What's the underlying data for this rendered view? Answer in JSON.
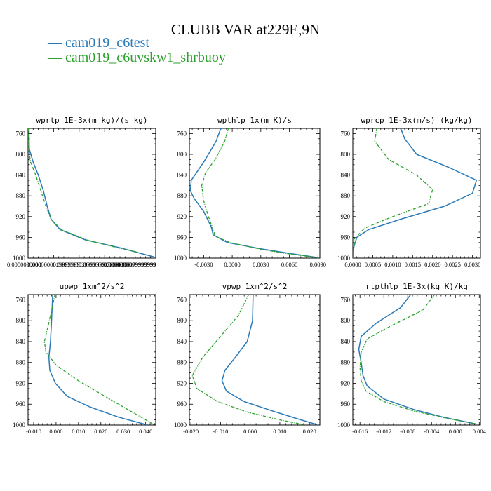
{
  "title": "CLUBB VAR at229E,9N",
  "colors": {
    "series0": "#2a7ab8",
    "series1": "#2ca02c",
    "axis": "#000000"
  },
  "legend": [
    {
      "label": "cam019_c6test",
      "color": "#2a7ab8",
      "symbol": "—"
    },
    {
      "label": "cam019_c6uvskw1_shrbuoy",
      "color": "#2ca02c",
      "symbol": "—"
    }
  ],
  "chart_data": [
    {
      "type": "line",
      "title": "wprtp  1E-3x(m kg)/(s kg)",
      "xlim": [
        0,
        9.9999999e-09
      ],
      "ylim": [
        1000,
        750
      ],
      "yticks": [
        760,
        800,
        840,
        880,
        920,
        960,
        1000
      ],
      "xticks": [
        0,
        1.9999999e-09,
        3.9999999e-09,
        5.9999999e-09,
        7.9999999e-09,
        9.9999999e-09
      ],
      "xtick_labels": [
        "0.0000000000",
        "0.0000000019999999",
        "0.0000000039999999",
        "0.0000000059999999",
        "0.0000000079999999",
        "0.0000000099999999"
      ],
      "xtick_render": "overlap",
      "series": [
        {
          "points": [
            [
              8e-11,
              750
            ],
            [
              8e-11,
              770
            ],
            [
              1e-10,
              790
            ],
            [
              4e-10,
              815
            ],
            [
              8e-10,
              840
            ],
            [
              1.2e-09,
              870
            ],
            [
              1.5e-09,
              900
            ],
            [
              1.8e-09,
              925
            ],
            [
              2.5e-09,
              945
            ],
            [
              4.5e-09,
              965
            ],
            [
              7.2e-09,
              980
            ],
            [
              9e-09,
              992
            ],
            [
              9.9e-09,
              998
            ]
          ]
        },
        {
          "points": [
            [
              3e-11,
              750
            ],
            [
              3e-11,
              770
            ],
            [
              5e-11,
              790
            ],
            [
              2e-10,
              815
            ],
            [
              6e-10,
              840
            ],
            [
              1e-09,
              870
            ],
            [
              1.4e-09,
              900
            ],
            [
              1.8e-09,
              925
            ],
            [
              2.6e-09,
              945
            ],
            [
              4.6e-09,
              965
            ],
            [
              7e-09,
              980
            ],
            [
              8.2e-09,
              986
            ],
            [
              8.7e-09,
              990
            ]
          ]
        }
      ]
    },
    {
      "type": "line",
      "title": "wpthlp  1x(m K)/s",
      "xlim": [
        -0.0045,
        0.0092
      ],
      "ylim": [
        1000,
        750
      ],
      "yticks": [
        760,
        800,
        840,
        880,
        920,
        960,
        1000
      ],
      "xticks": [
        -0.003,
        0.0,
        0.003,
        0.006,
        0.009
      ],
      "xtick_labels": [
        "-0.0030",
        "0.0000",
        "0.0030",
        "0.0060",
        "0.0090"
      ],
      "series": [
        {
          "points": [
            [
              -0.0012,
              750
            ],
            [
              -0.0017,
              775
            ],
            [
              -0.003,
              815
            ],
            [
              -0.0043,
              850
            ],
            [
              -0.0044,
              870
            ],
            [
              -0.004,
              885
            ],
            [
              -0.003,
              910
            ],
            [
              -0.0022,
              940
            ],
            [
              -0.002,
              955
            ],
            [
              -0.0005,
              970
            ],
            [
              0.003,
              982
            ],
            [
              0.006,
              991
            ],
            [
              0.009,
              999
            ]
          ]
        },
        {
          "points": [
            [
              -0.0004,
              750
            ],
            [
              -0.0008,
              775
            ],
            [
              -0.0018,
              810
            ],
            [
              -0.0028,
              835
            ],
            [
              -0.0032,
              860
            ],
            [
              -0.003,
              890
            ],
            [
              -0.0025,
              920
            ],
            [
              -0.002,
              945
            ],
            [
              -0.0018,
              958
            ],
            [
              -0.0002,
              970
            ],
            [
              0.003,
              983
            ],
            [
              0.006,
              992
            ],
            [
              0.009,
              999
            ]
          ]
        }
      ]
    },
    {
      "type": "line",
      "title": "wprcp  1E-3x(m/s) (kg/kg)",
      "xlim": [
        0,
        0.0032
      ],
      "ylim": [
        1000,
        750
      ],
      "yticks": [
        760,
        800,
        840,
        880,
        920,
        960,
        1000
      ],
      "xticks": [
        0.0,
        0.0005,
        0.001,
        0.0015,
        0.002,
        0.0025,
        0.003
      ],
      "xtick_labels": [
        "0.0000",
        "0.0005",
        "0.0010",
        "0.0015",
        "0.0020",
        "0.0025",
        "0.0030"
      ],
      "series": [
        {
          "points": [
            [
              0.0012,
              750
            ],
            [
              0.0013,
              770
            ],
            [
              0.0016,
              800
            ],
            [
              0.0024,
              825
            ],
            [
              0.0031,
              850
            ],
            [
              0.003,
              875
            ],
            [
              0.0023,
              900
            ],
            [
              0.0012,
              925
            ],
            [
              0.0004,
              945
            ],
            [
              0.0001,
              960
            ],
            [
              2e-05,
              980
            ],
            [
              0.0,
              1000
            ]
          ]
        },
        {
          "points": [
            [
              0.0006,
              750
            ],
            [
              0.00055,
              775
            ],
            [
              0.0009,
              810
            ],
            [
              0.0016,
              840
            ],
            [
              0.002,
              868
            ],
            [
              0.0019,
              895
            ],
            [
              0.001,
              920
            ],
            [
              0.0003,
              942
            ],
            [
              5e-05,
              962
            ],
            [
              0.0,
              1000
            ]
          ]
        }
      ]
    },
    {
      "type": "line",
      "title": "upwp  1xm^2/s^2",
      "xlim": [
        -0.0125,
        0.0445
      ],
      "ylim": [
        1000,
        750
      ],
      "yticks": [
        760,
        800,
        840,
        880,
        920,
        960,
        1000
      ],
      "xticks": [
        -0.01,
        0.0,
        0.01,
        0.02,
        0.03,
        0.04
      ],
      "xtick_labels": [
        "-0.010",
        "0.000",
        "0.010",
        "0.020",
        "0.030",
        "0.040"
      ],
      "series": [
        {
          "points": [
            [
              -0.0015,
              750
            ],
            [
              -0.002,
              800
            ],
            [
              -0.0025,
              840
            ],
            [
              -0.0032,
              870
            ],
            [
              -0.0028,
              895
            ],
            [
              -0.0003,
              920
            ],
            [
              0.005,
              945
            ],
            [
              0.015,
              965
            ],
            [
              0.028,
              985
            ],
            [
              0.041,
              1000
            ]
          ]
        },
        {
          "points": [
            [
              -0.0005,
              750
            ],
            [
              -0.003,
              800
            ],
            [
              -0.0052,
              840
            ],
            [
              -0.0045,
              860
            ],
            [
              0.0,
              885
            ],
            [
              0.01,
              915
            ],
            [
              0.023,
              948
            ],
            [
              0.034,
              975
            ],
            [
              0.044,
              1000
            ]
          ]
        }
      ]
    },
    {
      "type": "line",
      "title": "vpwp  1xm^2/s^2",
      "xlim": [
        -0.0205,
        0.0235
      ],
      "ylim": [
        1000,
        750
      ],
      "yticks": [
        760,
        800,
        840,
        880,
        920,
        960,
        1000
      ],
      "xticks": [
        -0.02,
        -0.01,
        0.0,
        0.01,
        0.02
      ],
      "xtick_labels": [
        "-0.020",
        "-0.010",
        "0.000",
        "0.010",
        "0.020"
      ],
      "series": [
        {
          "points": [
            [
              0.001,
              750
            ],
            [
              0.0008,
              800
            ],
            [
              -0.001,
              840
            ],
            [
              -0.005,
              870
            ],
            [
              -0.0085,
              895
            ],
            [
              -0.0095,
              915
            ],
            [
              -0.008,
              935
            ],
            [
              -0.002,
              955
            ],
            [
              0.007,
              972
            ],
            [
              0.016,
              988
            ],
            [
              0.0225,
              999
            ]
          ]
        },
        {
          "points": [
            [
              -0.0005,
              750
            ],
            [
              -0.004,
              790
            ],
            [
              -0.01,
              830
            ],
            [
              -0.016,
              870
            ],
            [
              -0.0195,
              905
            ],
            [
              -0.018,
              930
            ],
            [
              -0.011,
              955
            ],
            [
              -0.001,
              975
            ],
            [
              0.01,
              990
            ],
            [
              0.018,
              999
            ]
          ]
        }
      ]
    },
    {
      "type": "line",
      "title": "rtpthlp  1E-3x(kg K)/kg",
      "xlim": [
        -0.0172,
        0.0042
      ],
      "ylim": [
        1000,
        750
      ],
      "yticks": [
        760,
        800,
        840,
        880,
        920,
        960,
        1000
      ],
      "xticks": [
        -0.016,
        -0.012,
        -0.008,
        -0.004,
        0.0,
        0.004
      ],
      "xtick_labels": [
        "-0.016",
        "-0.012",
        "-0.008",
        "-0.004",
        "0.000",
        "0.004"
      ],
      "series": [
        {
          "points": [
            [
              -0.0075,
              750
            ],
            [
              -0.0092,
              775
            ],
            [
              -0.0133,
              805
            ],
            [
              -0.0158,
              830
            ],
            [
              -0.0162,
              855
            ],
            [
              -0.0158,
              880
            ],
            [
              -0.0155,
              905
            ],
            [
              -0.0148,
              925
            ],
            [
              -0.012,
              950
            ],
            [
              -0.007,
              970
            ],
            [
              -0.002,
              985
            ],
            [
              0.0035,
              998
            ]
          ]
        },
        {
          "points": [
            [
              -0.0035,
              750
            ],
            [
              -0.0055,
              780
            ],
            [
              -0.0108,
              810
            ],
            [
              -0.0148,
              835
            ],
            [
              -0.0158,
              860
            ],
            [
              -0.016,
              890
            ],
            [
              -0.0158,
              915
            ],
            [
              -0.015,
              935
            ],
            [
              -0.012,
              955
            ],
            [
              -0.007,
              973
            ],
            [
              -0.001,
              988
            ],
            [
              0.0035,
              998
            ]
          ]
        }
      ]
    }
  ]
}
